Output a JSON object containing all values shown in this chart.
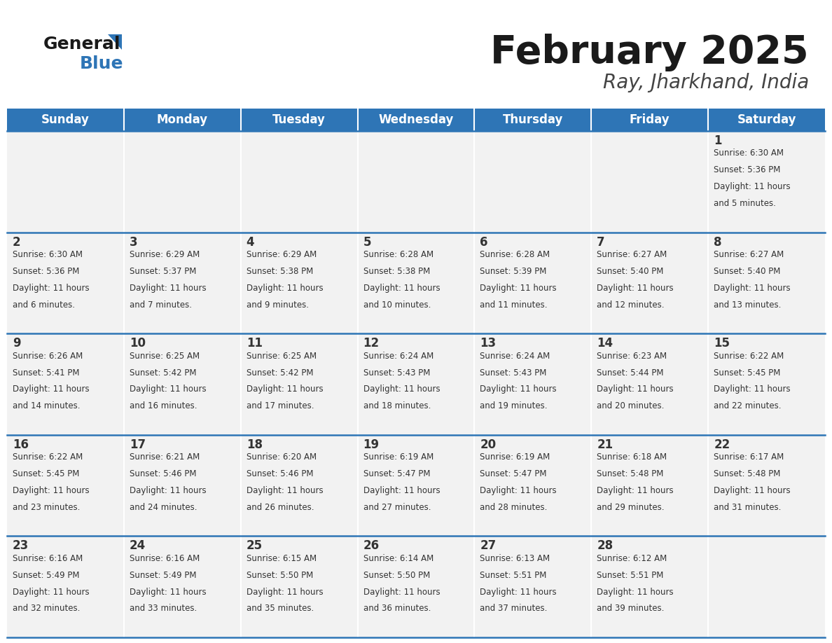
{
  "title": "February 2025",
  "subtitle": "Ray, Jharkhand, India",
  "header_bg": "#2E75B6",
  "header_text_color": "#FFFFFF",
  "cell_bg": "#F2F2F2",
  "border_color": "#2E75B6",
  "text_color": "#333333",
  "day_number_color": "#333333",
  "days_of_week": [
    "Sunday",
    "Monday",
    "Tuesday",
    "Wednesday",
    "Thursday",
    "Friday",
    "Saturday"
  ],
  "calendar_data": [
    [
      null,
      null,
      null,
      null,
      null,
      null,
      {
        "day": "1",
        "sunrise": "6:30 AM",
        "sunset": "5:36 PM",
        "daylight": "11 hours",
        "daylight2": "and 5 minutes."
      }
    ],
    [
      {
        "day": "2",
        "sunrise": "6:30 AM",
        "sunset": "5:36 PM",
        "daylight": "11 hours",
        "daylight2": "and 6 minutes."
      },
      {
        "day": "3",
        "sunrise": "6:29 AM",
        "sunset": "5:37 PM",
        "daylight": "11 hours",
        "daylight2": "and 7 minutes."
      },
      {
        "day": "4",
        "sunrise": "6:29 AM",
        "sunset": "5:38 PM",
        "daylight": "11 hours",
        "daylight2": "and 9 minutes."
      },
      {
        "day": "5",
        "sunrise": "6:28 AM",
        "sunset": "5:38 PM",
        "daylight": "11 hours",
        "daylight2": "and 10 minutes."
      },
      {
        "day": "6",
        "sunrise": "6:28 AM",
        "sunset": "5:39 PM",
        "daylight": "11 hours",
        "daylight2": "and 11 minutes."
      },
      {
        "day": "7",
        "sunrise": "6:27 AM",
        "sunset": "5:40 PM",
        "daylight": "11 hours",
        "daylight2": "and 12 minutes."
      },
      {
        "day": "8",
        "sunrise": "6:27 AM",
        "sunset": "5:40 PM",
        "daylight": "11 hours",
        "daylight2": "and 13 minutes."
      }
    ],
    [
      {
        "day": "9",
        "sunrise": "6:26 AM",
        "sunset": "5:41 PM",
        "daylight": "11 hours",
        "daylight2": "and 14 minutes."
      },
      {
        "day": "10",
        "sunrise": "6:25 AM",
        "sunset": "5:42 PM",
        "daylight": "11 hours",
        "daylight2": "and 16 minutes."
      },
      {
        "day": "11",
        "sunrise": "6:25 AM",
        "sunset": "5:42 PM",
        "daylight": "11 hours",
        "daylight2": "and 17 minutes."
      },
      {
        "day": "12",
        "sunrise": "6:24 AM",
        "sunset": "5:43 PM",
        "daylight": "11 hours",
        "daylight2": "and 18 minutes."
      },
      {
        "day": "13",
        "sunrise": "6:24 AM",
        "sunset": "5:43 PM",
        "daylight": "11 hours",
        "daylight2": "and 19 minutes."
      },
      {
        "day": "14",
        "sunrise": "6:23 AM",
        "sunset": "5:44 PM",
        "daylight": "11 hours",
        "daylight2": "and 20 minutes."
      },
      {
        "day": "15",
        "sunrise": "6:22 AM",
        "sunset": "5:45 PM",
        "daylight": "11 hours",
        "daylight2": "and 22 minutes."
      }
    ],
    [
      {
        "day": "16",
        "sunrise": "6:22 AM",
        "sunset": "5:45 PM",
        "daylight": "11 hours",
        "daylight2": "and 23 minutes."
      },
      {
        "day": "17",
        "sunrise": "6:21 AM",
        "sunset": "5:46 PM",
        "daylight": "11 hours",
        "daylight2": "and 24 minutes."
      },
      {
        "day": "18",
        "sunrise": "6:20 AM",
        "sunset": "5:46 PM",
        "daylight": "11 hours",
        "daylight2": "and 26 minutes."
      },
      {
        "day": "19",
        "sunrise": "6:19 AM",
        "sunset": "5:47 PM",
        "daylight": "11 hours",
        "daylight2": "and 27 minutes."
      },
      {
        "day": "20",
        "sunrise": "6:19 AM",
        "sunset": "5:47 PM",
        "daylight": "11 hours",
        "daylight2": "and 28 minutes."
      },
      {
        "day": "21",
        "sunrise": "6:18 AM",
        "sunset": "5:48 PM",
        "daylight": "11 hours",
        "daylight2": "and 29 minutes."
      },
      {
        "day": "22",
        "sunrise": "6:17 AM",
        "sunset": "5:48 PM",
        "daylight": "11 hours",
        "daylight2": "and 31 minutes."
      }
    ],
    [
      {
        "day": "23",
        "sunrise": "6:16 AM",
        "sunset": "5:49 PM",
        "daylight": "11 hours",
        "daylight2": "and 32 minutes."
      },
      {
        "day": "24",
        "sunrise": "6:16 AM",
        "sunset": "5:49 PM",
        "daylight": "11 hours",
        "daylight2": "and 33 minutes."
      },
      {
        "day": "25",
        "sunrise": "6:15 AM",
        "sunset": "5:50 PM",
        "daylight": "11 hours",
        "daylight2": "and 35 minutes."
      },
      {
        "day": "26",
        "sunrise": "6:14 AM",
        "sunset": "5:50 PM",
        "daylight": "11 hours",
        "daylight2": "and 36 minutes."
      },
      {
        "day": "27",
        "sunrise": "6:13 AM",
        "sunset": "5:51 PM",
        "daylight": "11 hours",
        "daylight2": "and 37 minutes."
      },
      {
        "day": "28",
        "sunrise": "6:12 AM",
        "sunset": "5:51 PM",
        "daylight": "11 hours",
        "daylight2": "and 39 minutes."
      },
      null
    ]
  ],
  "fig_width": 11.88,
  "fig_height": 9.18,
  "dpi": 100
}
